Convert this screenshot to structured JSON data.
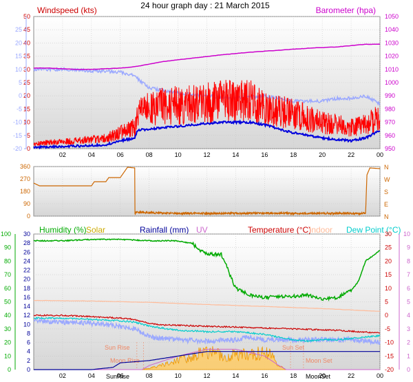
{
  "title": "24 hour graph day : 21 March 2015",
  "colors": {
    "wind": "#ff0000",
    "gust": "#ff0000",
    "avg": "#0000dd",
    "temp_axis": "#9aa8ff",
    "baro": "#cc00cc",
    "dir": "#cc6600",
    "humidity": "#00aa00",
    "solar": "#ccaa00",
    "rain": "#000099",
    "uv": "#cc66cc",
    "temperature": "#cc0000",
    "indoor": "#ffbb99",
    "dewpoint": "#00cccc",
    "temp2": "#9aa8ff",
    "plotbg": "#e4e4e4"
  },
  "chart_data": [
    {
      "type": "line",
      "name": "wind-baro",
      "left_label": "Windspeed (kts)",
      "right_label": "Barometer (hpa)",
      "x_ticks": [
        "02",
        "04",
        "06",
        "08",
        "10",
        "12",
        "14",
        "16",
        "18",
        "20",
        "22",
        "00"
      ],
      "left_ticks": [
        "50",
        "45",
        "40",
        "35",
        "30",
        "25",
        "20",
        "15",
        "10",
        "5",
        "0"
      ],
      "temp_ticks": [
        "25",
        "20",
        "15",
        "10",
        "5",
        "0",
        "-5",
        "-10",
        "-15",
        "-20"
      ],
      "right_ticks": [
        "1050",
        "1040",
        "1030",
        "1020",
        "1010",
        "1000",
        "990",
        "980",
        "970",
        "960",
        "950"
      ],
      "wind_range": [
        0,
        50
      ],
      "baro_range": [
        950,
        1050
      ],
      "temp_range": [
        -20,
        30
      ],
      "x_hours": [
        0,
        24
      ],
      "wind_avg": {
        "x": [
          0,
          3,
          5,
          6,
          7,
          7.2,
          9,
          11,
          13,
          15,
          16,
          18,
          20,
          22,
          23,
          24
        ],
        "y": [
          0.5,
          1,
          1.5,
          3,
          4,
          7,
          8,
          9,
          10,
          10,
          9,
          6,
          4,
          3,
          4,
          7
        ]
      },
      "wind_gust_level": {
        "x": [
          0,
          3,
          5,
          6,
          7,
          7.2,
          9,
          11,
          13,
          15,
          16,
          18,
          20,
          22,
          23,
          24
        ],
        "y": [
          2,
          3,
          4,
          6,
          8,
          14,
          16,
          17,
          18,
          18,
          16,
          13,
          10,
          8,
          9,
          12
        ]
      },
      "barometer": {
        "x": [
          0,
          1,
          2,
          3,
          4,
          5,
          6,
          7,
          9,
          11,
          13,
          15,
          17,
          19,
          21,
          22,
          23,
          24
        ],
        "y": [
          1011,
          1011,
          1010.5,
          1010,
          1010,
          1010.5,
          1011,
          1012,
          1016,
          1018.5,
          1021,
          1023,
          1024.5,
          1026,
          1027,
          1028,
          1029,
          1029
        ]
      },
      "outdoor_temp": {
        "x": [
          0,
          2,
          4,
          6,
          7,
          7.5,
          8,
          9,
          10,
          12,
          14,
          16,
          17,
          18,
          19,
          20,
          21,
          22,
          23,
          24
        ],
        "y": [
          10,
          10,
          9.5,
          9,
          7.5,
          5,
          3,
          2,
          1,
          0,
          -1,
          0,
          -1,
          -2,
          -2,
          -2,
          -1,
          -1,
          0,
          -3
        ]
      }
    },
    {
      "type": "line",
      "name": "wind-direction",
      "y_ticks": [
        "360",
        "270",
        "180",
        "90",
        "0"
      ],
      "direction_labels": [
        "N",
        "W",
        "S",
        "E",
        "N"
      ],
      "y_range": [
        0,
        360
      ],
      "series": {
        "x": [
          0,
          0.2,
          0.4,
          4,
          4.2,
          4.5,
          5,
          5.2,
          5.5,
          6,
          6.5,
          7,
          7,
          7.1,
          8,
          10,
          12,
          14,
          16,
          18,
          20,
          22,
          23,
          23.1,
          23.3,
          24
        ],
        "y": [
          240,
          230,
          220,
          220,
          250,
          250,
          250,
          280,
          280,
          280,
          355,
          350,
          10,
          30,
          25,
          20,
          20,
          20,
          22,
          20,
          20,
          20,
          20,
          300,
          350,
          345
        ]
      }
    },
    {
      "type": "line",
      "name": "hum-temp",
      "legend": [
        "Humidity (%)",
        "Solar",
        "Rainfall (mm)",
        "UV",
        "Temperature (°C)",
        "Indoor",
        "Dew Point (°C)"
      ],
      "x_ticks": [
        "02",
        "04",
        "06",
        "08",
        "10",
        "12",
        "14",
        "16",
        "18",
        "20",
        "22",
        "00"
      ],
      "humidity_ticks": [
        "100",
        "90",
        "80",
        "70",
        "60",
        "50",
        "40",
        "30",
        "20",
        "10",
        "0"
      ],
      "rain_ticks": [
        "30",
        "28",
        "26",
        "24",
        "22",
        "20",
        "18",
        "16",
        "14",
        "12",
        "10",
        "8",
        "6",
        "4",
        "2",
        "0"
      ],
      "temp_ticks": [
        "30",
        "25",
        "20",
        "15",
        "10",
        "5",
        "0",
        "-5",
        "-10",
        "-15",
        "-20"
      ],
      "uv_ticks": [
        "10",
        "9",
        "8",
        "7",
        "6",
        "5",
        "4",
        "3",
        "2",
        "1",
        "0"
      ],
      "event_labels": [
        "Sun Rise",
        "Moon Rise",
        "Sun Set",
        "Moon Set",
        "SunRise",
        "MoonSet"
      ],
      "humidity": {
        "x": [
          0,
          2,
          4,
          5,
          6,
          8,
          10,
          11,
          11.5,
          12,
          13,
          13.3,
          13.6,
          14,
          15,
          16,
          17,
          18,
          19,
          20,
          21,
          22,
          22.5,
          23,
          24
        ],
        "y": [
          95,
          95,
          96,
          96,
          96,
          95,
          95,
          93,
          88,
          85,
          85,
          78,
          70,
          60,
          55,
          53,
          54,
          54,
          55,
          52,
          53,
          58,
          65,
          80,
          88
        ]
      },
      "temperature": {
        "x": [
          0,
          2,
          4,
          6,
          7,
          8,
          9,
          12,
          15,
          18,
          21,
          24
        ],
        "y": [
          0,
          0,
          -0.5,
          -1,
          -1.5,
          -3,
          -3.5,
          -4,
          -4.5,
          -5,
          -5.5,
          -6.5
        ]
      },
      "indoor": {
        "x": [
          0,
          4,
          8,
          12,
          16,
          20,
          24
        ],
        "y": [
          5.5,
          5.3,
          4.8,
          4,
          3.3,
          2.5,
          1.5
        ]
      },
      "dewpoint": {
        "x": [
          0,
          2,
          4,
          6,
          7,
          8,
          10,
          12,
          13,
          14,
          16,
          17,
          18,
          19,
          20,
          21,
          22,
          23,
          24
        ],
        "y": [
          -1,
          -1,
          -1.5,
          -2,
          -2.5,
          -4,
          -5.5,
          -6,
          -6,
          -6,
          -7,
          -8,
          -9,
          -9.5,
          -9,
          -9,
          -8.5,
          -8,
          -7.5
        ]
      },
      "temp2": {
        "x": [
          0,
          2,
          4,
          6,
          7,
          8,
          10,
          12,
          14,
          15,
          16,
          18,
          20,
          22,
          24
        ],
        "y": [
          -2,
          -2.5,
          -3,
          -4,
          -5,
          -8,
          -9,
          -9.5,
          -9,
          -8,
          -9,
          -9,
          -9,
          -9,
          -10
        ]
      },
      "rainfall": {
        "x": [
          0,
          2,
          4,
          5.5,
          6,
          8,
          12,
          16,
          18,
          24
        ],
        "y": [
          0,
          0,
          0,
          0.5,
          1.5,
          2,
          4,
          4,
          4,
          4
        ]
      },
      "solar": {
        "x": [
          0,
          7.5,
          9,
          10,
          11,
          12,
          13,
          14,
          15,
          16,
          16.5,
          17,
          17.5,
          24
        ],
        "y": [
          0,
          0,
          1,
          2,
          3,
          4,
          3,
          3.5,
          3,
          4,
          3,
          1,
          0,
          0
        ]
      },
      "uv": {
        "x": [
          0,
          7.5,
          8,
          10,
          12,
          14,
          16,
          17,
          17.5,
          24
        ],
        "y": [
          0,
          0,
          0.3,
          1,
          1.5,
          1.5,
          1,
          0.3,
          0,
          0
        ]
      }
    }
  ]
}
